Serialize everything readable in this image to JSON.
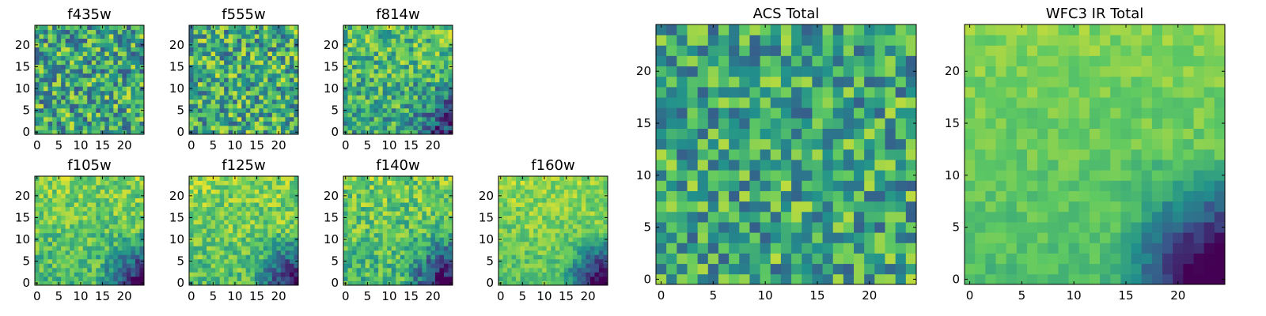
{
  "figure": {
    "colormap": "viridis",
    "colormap_stops": [
      "#440154",
      "#3b528b",
      "#21918c",
      "#5ec962",
      "#fde725"
    ]
  },
  "chart_data": [
    {
      "type": "heatmap",
      "title": "f435w",
      "grid_size": 25,
      "xlim": [
        0,
        24
      ],
      "ylim": [
        0,
        24
      ],
      "xticks": [
        0,
        5,
        10,
        15,
        20
      ],
      "yticks": [
        0,
        5,
        10,
        15,
        20
      ],
      "pattern": "noise",
      "seed": 11,
      "base_level": 0.6,
      "noise_amplitude": 0.34
    },
    {
      "type": "heatmap",
      "title": "f555w",
      "grid_size": 25,
      "xlim": [
        0,
        24
      ],
      "ylim": [
        0,
        24
      ],
      "xticks": [
        0,
        5,
        10,
        15,
        20
      ],
      "yticks": [
        0,
        5,
        10,
        15,
        20
      ],
      "pattern": "noise",
      "seed": 23,
      "base_level": 0.62,
      "noise_amplitude": 0.33
    },
    {
      "type": "heatmap",
      "title": "f814w",
      "grid_size": 25,
      "xlim": [
        0,
        24
      ],
      "ylim": [
        0,
        24
      ],
      "xticks": [
        0,
        5,
        10,
        15,
        20
      ],
      "yticks": [
        0,
        5,
        10,
        15,
        20
      ],
      "pattern": "gradient",
      "seed": 37,
      "base_level": 0.64,
      "noise_amplitude": 0.26,
      "corner_depth": 0.35
    },
    {
      "type": "heatmap",
      "title": "f105w",
      "grid_size": 25,
      "xlim": [
        0,
        24
      ],
      "ylim": [
        0,
        24
      ],
      "xticks": [
        0,
        5,
        10,
        15,
        20
      ],
      "yticks": [
        0,
        5,
        10,
        15,
        20
      ],
      "pattern": "gradient",
      "seed": 41,
      "base_level": 0.72,
      "noise_amplitude": 0.18,
      "corner_depth": 0.55
    },
    {
      "type": "heatmap",
      "title": "f125w",
      "grid_size": 25,
      "xlim": [
        0,
        24
      ],
      "ylim": [
        0,
        24
      ],
      "xticks": [
        0,
        5,
        10,
        15,
        20
      ],
      "yticks": [
        0,
        5,
        10,
        15,
        20
      ],
      "pattern": "gradient",
      "seed": 53,
      "base_level": 0.74,
      "noise_amplitude": 0.18,
      "corner_depth": 0.6
    },
    {
      "type": "heatmap",
      "title": "f140w",
      "grid_size": 25,
      "xlim": [
        0,
        24
      ],
      "ylim": [
        0,
        24
      ],
      "xticks": [
        0,
        5,
        10,
        15,
        20
      ],
      "yticks": [
        0,
        5,
        10,
        15,
        20
      ],
      "pattern": "gradient",
      "seed": 67,
      "base_level": 0.7,
      "noise_amplitude": 0.2,
      "corner_depth": 0.62
    },
    {
      "type": "heatmap",
      "title": "f160w",
      "grid_size": 25,
      "xlim": [
        0,
        24
      ],
      "ylim": [
        0,
        24
      ],
      "xticks": [
        0,
        5,
        10,
        15,
        20
      ],
      "yticks": [
        0,
        5,
        10,
        15,
        20
      ],
      "pattern": "gradient",
      "seed": 71,
      "base_level": 0.76,
      "noise_amplitude": 0.14,
      "corner_depth": 0.75
    },
    {
      "type": "heatmap",
      "title": "ACS Total",
      "grid_size": 25,
      "xlim": [
        0,
        24
      ],
      "ylim": [
        0,
        24
      ],
      "xticks": [
        0,
        5,
        10,
        15,
        20
      ],
      "yticks": [
        0,
        5,
        10,
        15,
        20
      ],
      "pattern": "noise",
      "seed": 89,
      "base_level": 0.6,
      "noise_amplitude": 0.3
    },
    {
      "type": "heatmap",
      "title": "WFC3 IR Total",
      "grid_size": 25,
      "xlim": [
        0,
        24
      ],
      "ylim": [
        0,
        24
      ],
      "xticks": [
        0,
        5,
        10,
        15,
        20
      ],
      "yticks": [
        0,
        5,
        10,
        15,
        20
      ],
      "pattern": "gradient",
      "seed": 97,
      "base_level": 0.74,
      "noise_amplitude": 0.08,
      "corner_depth": 0.8
    }
  ]
}
